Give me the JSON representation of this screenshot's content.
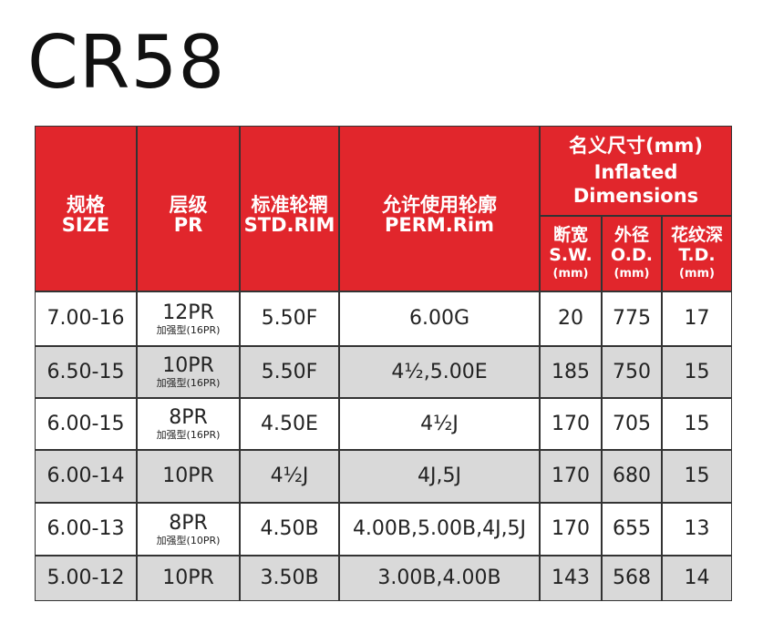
{
  "title": "CR58",
  "header": {
    "columns": [
      {
        "zh": "规格",
        "en": "SIZE"
      },
      {
        "zh": "层级",
        "en": "PR"
      },
      {
        "zh": "标准轮辋",
        "en": "STD.RIM"
      },
      {
        "zh": "允许使用轮廓",
        "en": "PERM.Rim"
      }
    ],
    "group": {
      "zh": "名义尺寸(mm)",
      "en_lines": [
        "Inflated",
        "Dimensions"
      ]
    },
    "subcolumns": [
      {
        "zh": "断宽",
        "en": "S.W.",
        "unit": "(mm)"
      },
      {
        "zh": "外径",
        "en": "O.D.",
        "unit": "(mm)"
      },
      {
        "zh": "花纹深",
        "en": "T.D.",
        "unit": "(mm)"
      }
    ]
  },
  "table": {
    "rows": [
      {
        "size": "7.00-16",
        "pr": "12PR",
        "pr_note": "加强型(16PR)",
        "std_rim": "5.50F",
        "perm_rim": "6.00G",
        "sw": 20,
        "od": 775,
        "td": 17
      },
      {
        "size": "6.50-15",
        "pr": "10PR",
        "pr_note": "加强型(16PR)",
        "std_rim": "5.50F",
        "perm_rim": "4½,5.00E",
        "sw": 185,
        "od": 750,
        "td": 15
      },
      {
        "size": "6.00-15",
        "pr": "8PR",
        "pr_note": "加强型(16PR)",
        "std_rim": "4.50E",
        "perm_rim": "4½J",
        "sw": 170,
        "od": 705,
        "td": 15
      },
      {
        "size": "6.00-14",
        "pr": "10PR",
        "std_rim": "4½J",
        "perm_rim": "4J,5J",
        "sw": 170,
        "od": 680,
        "td": 15
      },
      {
        "size": "6.00-13",
        "pr": "8PR",
        "pr_note": "加强型(10PR)",
        "std_rim": "4.50B",
        "perm_rim": "4.00B,5.00B,4J,5J",
        "sw": 170,
        "od": 655,
        "td": 13
      },
      {
        "size": "5.00-12",
        "pr": "10PR",
        "std_rim": "3.50B",
        "perm_rim": "3.00B,4.00B",
        "sw": 143,
        "od": 568,
        "td": 14
      }
    ]
  }
}
